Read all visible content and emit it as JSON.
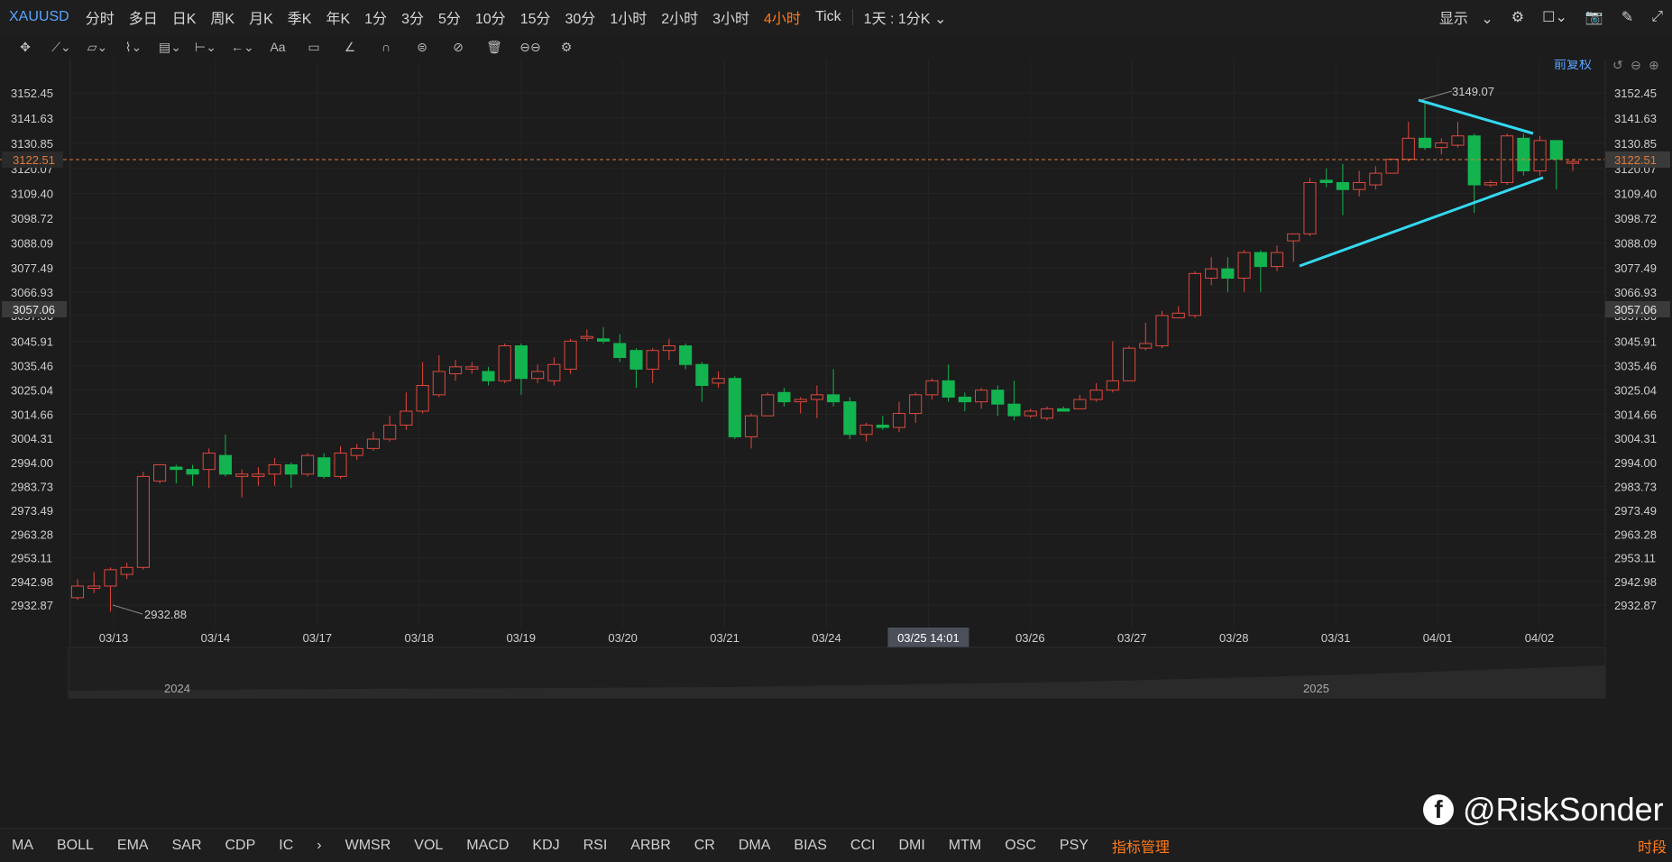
{
  "topbar": {
    "symbol": "XAUUSD",
    "timeframes": [
      "分时",
      "多日",
      "日K",
      "周K",
      "月K",
      "季K",
      "年K",
      "1分",
      "3分",
      "5分",
      "10分",
      "15分",
      "30分",
      "1小时",
      "2小时",
      "3小时",
      "4小时",
      "Tick"
    ],
    "active_timeframe": "4小时",
    "period_selector": "1天 : 1分K",
    "display_label": "显示"
  },
  "toolbar": {
    "icons": [
      "move-icon",
      "line-icon",
      "channel-icon",
      "wave-icon",
      "fib-icon",
      "measure-icon",
      "arrow-icon",
      "text-icon",
      "note-icon",
      "pen-icon",
      "magnet-icon",
      "lock-icon",
      "hide-icon",
      "trash-icon",
      "compare-icon",
      "settings-icon"
    ]
  },
  "chart_header": {
    "adjust_label": "前复权"
  },
  "price_axis": {
    "ticks": [
      "3152.45",
      "3141.63",
      "3130.85",
      "3120.07",
      "3109.40",
      "3098.72",
      "3088.09",
      "3077.49",
      "3066.93",
      "3057.06",
      "3045.91",
      "3035.46",
      "3025.04",
      "3014.66",
      "3004.31",
      "2994.00",
      "2983.73",
      "2973.49",
      "2963.28",
      "2953.11",
      "2942.98",
      "2932.87"
    ],
    "current_price": "3122.51",
    "crosshair_price": "3057.06"
  },
  "time_axis": {
    "labels": [
      "03/13",
      "03/14",
      "03/17",
      "03/18",
      "03/19",
      "03/20",
      "03/21",
      "03/24",
      "03/25 14:01",
      "03/26",
      "03/27",
      "03/28",
      "03/31",
      "04/01",
      "04/02"
    ],
    "highlighted": "03/25 14:01"
  },
  "annotations": {
    "high_label": "3149.07",
    "low_label": "2932.88"
  },
  "navigator": {
    "year_left": "2024",
    "year_right": "2025"
  },
  "indicators": [
    "MA",
    "BOLL",
    "EMA",
    "SAR",
    "CDP",
    "IC",
    "WMSR",
    "VOL",
    "MACD",
    "KDJ",
    "RSI",
    "ARBR",
    "CR",
    "DMA",
    "BIAS",
    "CCI",
    "DMI",
    "MTM",
    "OSC",
    "PSY"
  ],
  "indicator_manager": "指标管理",
  "time_segment": "时段",
  "watermark": "@RiskSonder",
  "colors": {
    "up": "#e0483e",
    "down": "#13b450",
    "trendline": "#33d9f0",
    "price_line": "#e07a3b",
    "active": "#ff7a1a"
  },
  "chart_data": {
    "type": "candlestick",
    "ylim": [
      2925,
      3162
    ],
    "candles": [
      [
        2936,
        2941,
        2935,
        2944
      ],
      [
        2940,
        2941,
        2938,
        2947
      ],
      [
        2941,
        2948,
        2930,
        2949
      ],
      [
        2946,
        2949,
        2944,
        2951
      ],
      [
        2949,
        2988,
        2948,
        2990
      ],
      [
        2986,
        2993,
        2985,
        2993
      ],
      [
        2992,
        2991,
        2985,
        2993
      ],
      [
        2991,
        2989,
        2984,
        2993
      ],
      [
        2991,
        2998,
        2983,
        3000
      ],
      [
        2997,
        2989,
        2988,
        3006
      ],
      [
        2988,
        2989,
        2979,
        2991
      ],
      [
        2988,
        2989,
        2984,
        2992
      ],
      [
        2989,
        2993,
        2984,
        2996
      ],
      [
        2993,
        2989,
        2983,
        2994
      ],
      [
        2989,
        2997,
        2988,
        2998
      ],
      [
        2996,
        2988,
        2987,
        2998
      ],
      [
        2988,
        2998,
        2987,
        3001
      ],
      [
        2997,
        3000,
        2995,
        3002
      ],
      [
        3000,
        3004,
        2999,
        3007
      ],
      [
        3004,
        3010,
        3003,
        3014
      ],
      [
        3010,
        3016,
        3008,
        3024
      ],
      [
        3016,
        3027,
        3015,
        3037
      ],
      [
        3023,
        3033,
        3022,
        3040
      ],
      [
        3032,
        3035,
        3029,
        3038
      ],
      [
        3034,
        3035,
        3032,
        3037
      ],
      [
        3033,
        3029,
        3027,
        3035
      ],
      [
        3029,
        3044,
        3028,
        3045
      ],
      [
        3044,
        3030,
        3023,
        3045
      ],
      [
        3030,
        3033,
        3028,
        3036
      ],
      [
        3029,
        3036,
        3027,
        3039
      ],
      [
        3034,
        3046,
        3032,
        3047
      ],
      [
        3048,
        3048,
        3046,
        3051
      ],
      [
        3047,
        3046,
        3045,
        3052
      ],
      [
        3045,
        3039,
        3037,
        3049
      ],
      [
        3042,
        3034,
        3026,
        3043
      ],
      [
        3034,
        3042,
        3028,
        3043
      ],
      [
        3042,
        3044,
        3038,
        3047
      ],
      [
        3044,
        3036,
        3034,
        3045
      ],
      [
        3036,
        3027,
        3020,
        3037
      ],
      [
        3028,
        3030,
        3026,
        3033
      ],
      [
        3030,
        3005,
        3004,
        3031
      ],
      [
        3005,
        3014,
        3000,
        3015
      ],
      [
        3014,
        3023,
        3014,
        3024
      ],
      [
        3024,
        3020,
        3018,
        3026
      ],
      [
        3020,
        3021,
        3015,
        3022
      ],
      [
        3021,
        3023,
        3013,
        3027
      ],
      [
        3023,
        3020,
        3018,
        3034
      ],
      [
        3020,
        3006,
        3004,
        3022
      ],
      [
        3006,
        3010,
        3003,
        3011
      ],
      [
        3010,
        3009,
        3008,
        3014
      ],
      [
        3009,
        3015,
        3007,
        3020
      ],
      [
        3015,
        3023,
        3011,
        3024
      ],
      [
        3023,
        3029,
        3021,
        3030
      ],
      [
        3029,
        3022,
        3020,
        3036
      ],
      [
        3022,
        3020,
        3016,
        3024
      ],
      [
        3020,
        3025,
        3017,
        3026
      ],
      [
        3025,
        3019,
        3014,
        3027
      ],
      [
        3019,
        3014,
        3012,
        3029
      ],
      [
        3014,
        3016,
        3013,
        3017
      ],
      [
        3013,
        3017,
        3012,
        3018
      ],
      [
        3017,
        3016,
        3016,
        3018
      ],
      [
        3017,
        3021,
        3017,
        3023
      ],
      [
        3021,
        3025,
        3020,
        3028
      ],
      [
        3025,
        3029,
        3024,
        3046
      ],
      [
        3029,
        3043,
        3029,
        3044
      ],
      [
        3043,
        3045,
        3042,
        3054
      ],
      [
        3044,
        3057,
        3043,
        3059
      ],
      [
        3056,
        3058,
        3057,
        3061
      ],
      [
        3057,
        3075,
        3056,
        3076
      ],
      [
        3073,
        3077,
        3070,
        3082
      ],
      [
        3077,
        3073,
        3067,
        3082
      ],
      [
        3073,
        3084,
        3067,
        3085
      ],
      [
        3084,
        3078,
        3067,
        3085
      ],
      [
        3078,
        3084,
        3076,
        3087
      ],
      [
        3089,
        3092,
        3080,
        3092
      ],
      [
        3092,
        3114,
        3091,
        3116
      ],
      [
        3115,
        3114,
        3112,
        3120
      ],
      [
        3114,
        3111,
        3100,
        3122
      ],
      [
        3111,
        3114,
        3108,
        3119
      ],
      [
        3113,
        3118,
        3111,
        3121
      ],
      [
        3118,
        3124,
        3118,
        3124
      ],
      [
        3124,
        3133,
        3123,
        3140
      ],
      [
        3133,
        3129,
        3128,
        3149
      ],
      [
        3129,
        3131,
        3126,
        3133
      ],
      [
        3130,
        3134,
        3129,
        3140
      ],
      [
        3134,
        3113,
        3101,
        3135
      ],
      [
        3113,
        3114,
        3112,
        3115
      ],
      [
        3114,
        3134,
        3113,
        3135
      ],
      [
        3133,
        3119,
        3117,
        3135
      ],
      [
        3119,
        3132,
        3117,
        3134
      ],
      [
        3132,
        3124,
        3111,
        3132
      ],
      [
        3123,
        3123,
        3119,
        3124
      ]
    ]
  }
}
